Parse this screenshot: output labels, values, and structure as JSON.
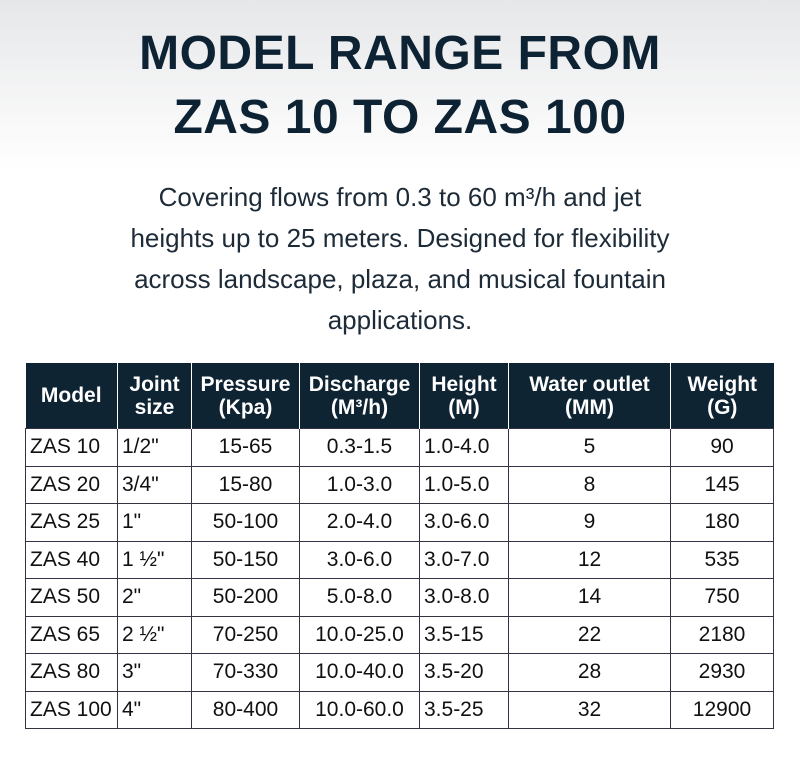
{
  "title": [
    "MODEL RANGE FROM",
    "ZAS 10 TO ZAS 100"
  ],
  "description": [
    "Covering flows from 0.3 to 60 m³/h and jet",
    "heights up to 25 meters. Designed for flexibility",
    "across landscape, plaza, and musical fountain",
    "applications."
  ],
  "table": {
    "header": [
      [
        "Model"
      ],
      [
        "Joint",
        "size"
      ],
      [
        "Pressure",
        "(Kpa)"
      ],
      [
        "Discharge",
        "(M³/h)"
      ],
      [
        "Height",
        "(M)"
      ],
      [
        "Water outlet",
        "(MM)"
      ],
      [
        "Weight",
        "(G)"
      ]
    ],
    "rows": [
      [
        "ZAS 10",
        "1/2\"",
        "15-65",
        "0.3-1.5",
        "1.0-4.0",
        "5",
        "90"
      ],
      [
        "ZAS 20",
        "3/4\"",
        "15-80",
        "1.0-3.0",
        "1.0-5.0",
        "8",
        "145"
      ],
      [
        "ZAS 25",
        "1\"",
        "50-100",
        "2.0-4.0",
        "3.0-6.0",
        "9",
        "180"
      ],
      [
        "ZAS 40",
        "1 ½\"",
        "50-150",
        "3.0-6.0",
        "3.0-7.0",
        "12",
        "535"
      ],
      [
        "ZAS 50",
        "2\"",
        "50-200",
        "5.0-8.0",
        "3.0-8.0",
        "14",
        "750"
      ],
      [
        "ZAS 65",
        "2 ½\"",
        "70-250",
        "10.0-25.0",
        "3.5-15",
        "22",
        "2180"
      ],
      [
        "ZAS 80",
        "3\"",
        "70-330",
        "10.0-40.0",
        "3.5-20",
        "28",
        "2930"
      ],
      [
        "ZAS 100",
        "4\"",
        "80-400",
        "10.0-60.0",
        "3.5-25",
        "32",
        "12900"
      ]
    ]
  }
}
